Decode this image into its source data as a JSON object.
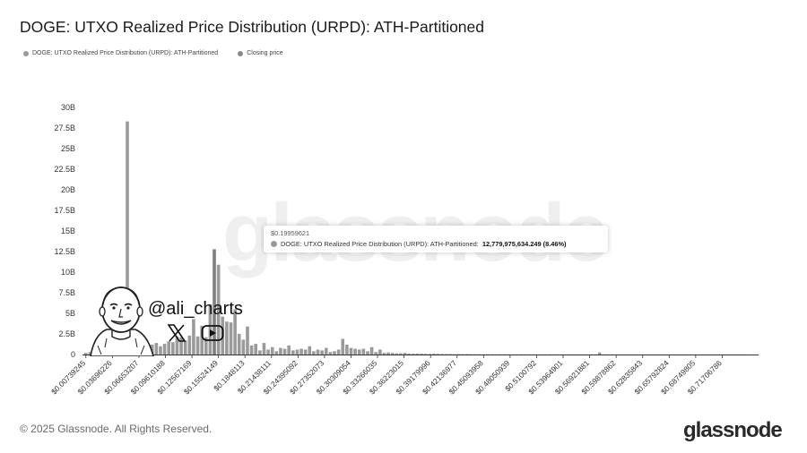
{
  "title": "DOGE: UTXO Realized Price Distribution (URPD): ATH-Partitioned",
  "legend": [
    {
      "label": "DOGE: UTXO Realized Price Distribution (URPD): ATH-Partitioned",
      "color": "#9a9a9a"
    },
    {
      "label": "Closing price",
      "color": "#8a8a8a"
    }
  ],
  "tooltip": {
    "title": "$0.19959621",
    "series": "DOGE: UTXO Realized Price Distribution (URPD): ATH-Partitioned:",
    "value": "12,779,975,634.249 (8.46%)"
  },
  "watermark": "glassnode",
  "footer": "© 2025 Glassnode. All Rights Reserved.",
  "logo": "glassnode",
  "overlay": {
    "handle": "@ali_charts",
    "icons": [
      "x-logo-icon",
      "youtube-icon",
      "avatar-caricature"
    ]
  },
  "colors": {
    "bar": "#9a9a9a",
    "highlight": "#7f7f7f",
    "axis": "#333333",
    "tick_text": "#333333"
  },
  "chart_data": {
    "type": "bar",
    "title": "DOGE: UTXO Realized Price Distribution (URPD): ATH-Partitioned",
    "xlabel": "",
    "ylabel": "",
    "ylim": [
      0,
      30000000000
    ],
    "yticks": [
      {
        "value": 0,
        "label": "0"
      },
      {
        "value": 2500000000,
        "label": "2.5B"
      },
      {
        "value": 5000000000,
        "label": "5B"
      },
      {
        "value": 7500000000,
        "label": "7.5B"
      },
      {
        "value": 10000000000,
        "label": "10B"
      },
      {
        "value": 12500000000,
        "label": "12.5B"
      },
      {
        "value": 15000000000,
        "label": "15B"
      },
      {
        "value": 17500000000,
        "label": "17.5B"
      },
      {
        "value": 20000000000,
        "label": "20B"
      },
      {
        "value": 22500000000,
        "label": "22.5B"
      },
      {
        "value": 25000000000,
        "label": "25B"
      },
      {
        "value": 27500000000,
        "label": "27.5B"
      },
      {
        "value": 30000000000,
        "label": "30B"
      }
    ],
    "x_tick_labels": [
      "$0.00739245",
      "$0.03696226",
      "$0.06653207",
      "$0.09610188",
      "$0.12567169",
      "$0.15524149",
      "$0.1848113",
      "$0.21438111",
      "$0.24395092",
      "$0.27352073",
      "$0.30309054",
      "$0.33266035",
      "$0.36223015",
      "$0.39179996",
      "$0.42136977",
      "$0.45093958",
      "$0.48050939",
      "$0.5100792",
      "$0.53964901",
      "$0.56921881",
      "$0.59878862",
      "$0.62835843",
      "$0.65792824",
      "$0.68749805",
      "$0.71706786"
    ],
    "grid": false,
    "legend_position": "top-left",
    "highlight_index": 31,
    "series": [
      {
        "name": "DOGE: UTXO Realized Price Distribution (URPD): ATH-Partitioned",
        "values": [
          200000000,
          300000000,
          200000000,
          500000000,
          300000000,
          600000000,
          400000000,
          700000000,
          400000000,
          800000000,
          28300000000,
          2000000000,
          300000000,
          900000000,
          1100000000,
          900000000,
          1200000000,
          1400000000,
          1000000000,
          1300000000,
          1600000000,
          1500000000,
          2200000000,
          2100000000,
          1700000000,
          2300000000,
          4300000000,
          2200000000,
          3500000000,
          2100000000,
          6100000000,
          12780000000,
          10900000000,
          4600000000,
          4000000000,
          3900000000,
          5500000000,
          2500000000,
          1800000000,
          3400000000,
          1100000000,
          1300000000,
          500000000,
          1400000000,
          600000000,
          900000000,
          400000000,
          800000000,
          700000000,
          1100000000,
          500000000,
          600000000,
          700000000,
          600000000,
          1000000000,
          400000000,
          600000000,
          500000000,
          800000000,
          300000000,
          400000000,
          600000000,
          1900000000,
          1200000000,
          800000000,
          700000000,
          600000000,
          700000000,
          400000000,
          900000000,
          300000000,
          600000000,
          200000000,
          250000000,
          200000000,
          150000000,
          150000000,
          200000000,
          120000000,
          100000000,
          120000000,
          100000000,
          90000000,
          80000000,
          100000000,
          80000000,
          70000000,
          60000000,
          60000000,
          50000000,
          60000000,
          50000000,
          50000000,
          40000000,
          40000000,
          40000000,
          40000000,
          30000000,
          30000000,
          30000000,
          30000000,
          30000000,
          30000000,
          25000000,
          25000000,
          25000000,
          25000000,
          20000000,
          20000000,
          20000000,
          20000000,
          20000000,
          20000000,
          20000000,
          20000000,
          20000000,
          20000000,
          20000000,
          20000000,
          20000000,
          20000000,
          20000000,
          20000000,
          20000000,
          250000000,
          20000000,
          20000000,
          20000000,
          20000000,
          15000000,
          15000000,
          15000000,
          15000000,
          15000000,
          15000000,
          15000000,
          15000000,
          15000000,
          15000000,
          15000000,
          15000000,
          15000000,
          15000000,
          15000000,
          15000000,
          15000000,
          15000000,
          15000000,
          15000000,
          15000000,
          15000000,
          15000000,
          15000000,
          15000000,
          15000000,
          15000000,
          15000000,
          15000000,
          15000000,
          15000000
        ]
      }
    ]
  }
}
